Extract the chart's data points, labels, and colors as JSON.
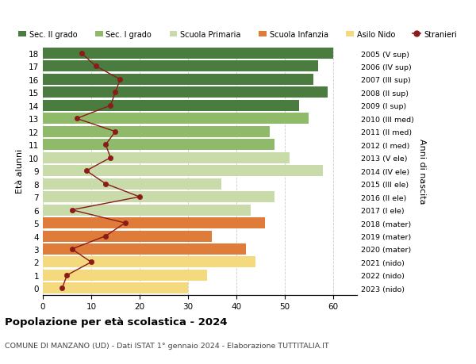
{
  "ages": [
    0,
    1,
    2,
    3,
    4,
    5,
    6,
    7,
    8,
    9,
    10,
    11,
    12,
    13,
    14,
    15,
    16,
    17,
    18
  ],
  "years": [
    "2023 (nido)",
    "2022 (nido)",
    "2021 (nido)",
    "2020 (mater)",
    "2019 (mater)",
    "2018 (mater)",
    "2017 (I ele)",
    "2016 (II ele)",
    "2015 (III ele)",
    "2014 (IV ele)",
    "2013 (V ele)",
    "2012 (I med)",
    "2011 (II med)",
    "2010 (III med)",
    "2009 (I sup)",
    "2008 (II sup)",
    "2007 (III sup)",
    "2006 (IV sup)",
    "2005 (V sup)"
  ],
  "bar_values": [
    30,
    34,
    44,
    42,
    35,
    46,
    43,
    48,
    37,
    58,
    51,
    48,
    47,
    55,
    53,
    59,
    56,
    57,
    60
  ],
  "stranieri": [
    4,
    5,
    10,
    6,
    13,
    17,
    6,
    20,
    13,
    9,
    14,
    13,
    15,
    7,
    14,
    15,
    16,
    11,
    8
  ],
  "bar_colors": {
    "nido": "#f5d97e",
    "mater": "#e07c3a",
    "ele": "#c8dba8",
    "med": "#8fba6a",
    "sup": "#4a7c3f"
  },
  "stranieri_color": "#8b1a1a",
  "stranieri_line_color": "#8b1a1a",
  "title": "Popolazione per età scolastica - 2024",
  "subtitle": "COMUNE DI MANZANO (UD) - Dati ISTAT 1° gennaio 2024 - Elaborazione TUTTITALIA.IT",
  "ylabel": "Età alunni",
  "ylabel_right": "Anni di nascita",
  "xlim": [
    0,
    65
  ],
  "ylim": [
    -0.5,
    18.5
  ],
  "xticks": [
    0,
    10,
    20,
    30,
    40,
    50,
    60
  ],
  "legend_labels": [
    "Sec. II grado",
    "Sec. I grado",
    "Scuola Primaria",
    "Scuola Infanzia",
    "Asilo Nido",
    "Stranieri"
  ],
  "legend_colors": [
    "#4a7c3f",
    "#8fba6a",
    "#c8dba8",
    "#e07c3a",
    "#f5d97e",
    "#8b1a1a"
  ],
  "background_color": "#ffffff",
  "grid_color": "#cccccc"
}
